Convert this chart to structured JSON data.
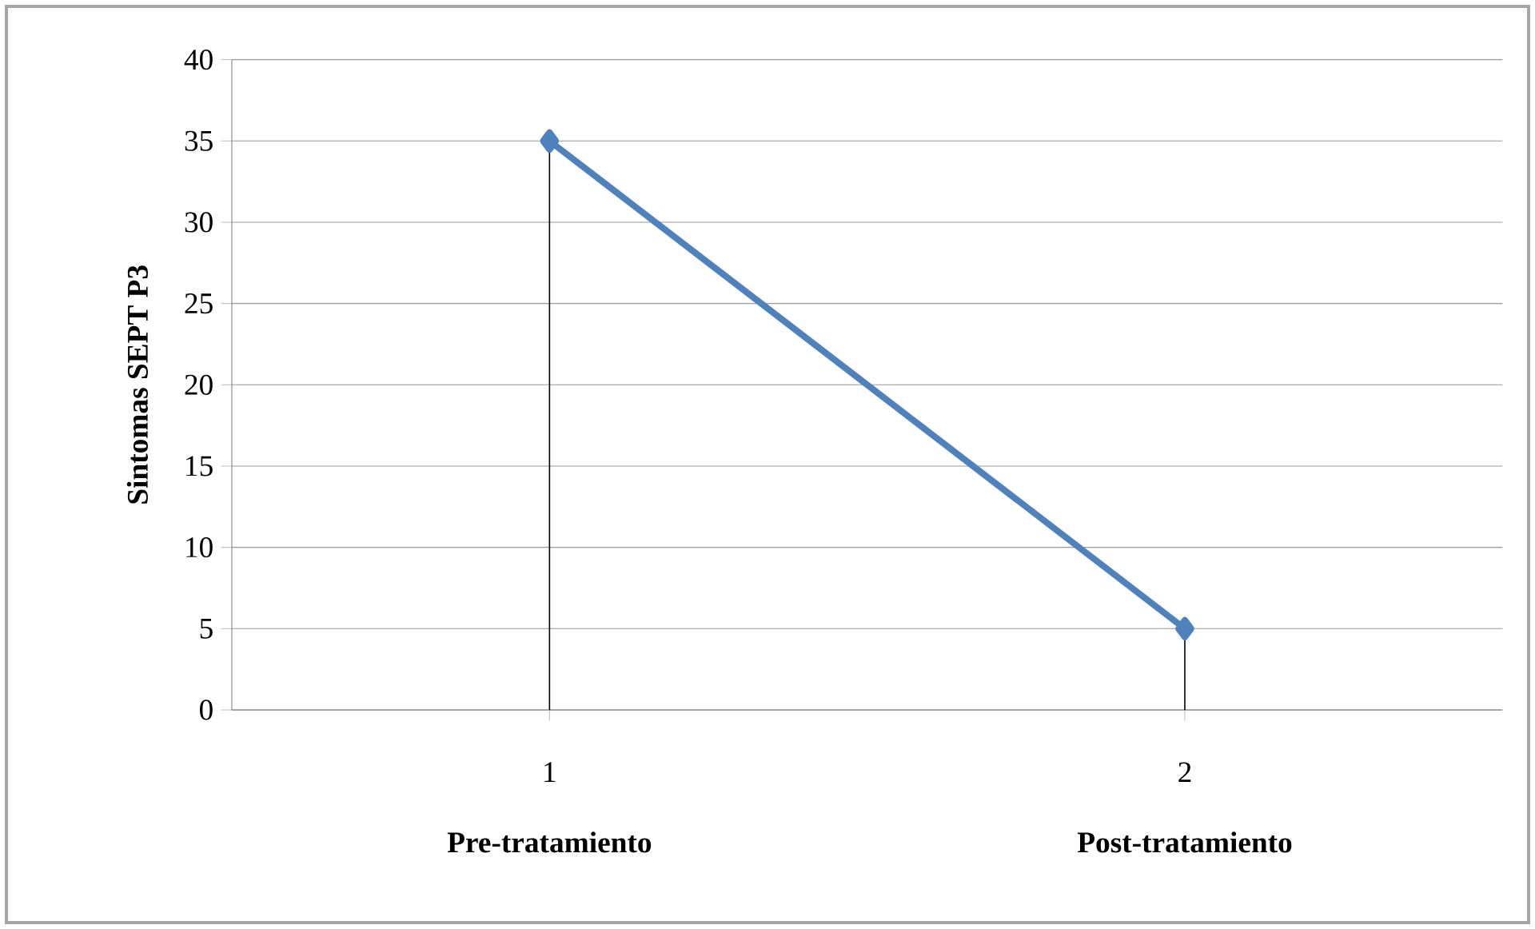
{
  "chart_data": {
    "type": "line",
    "ylabel": "Sintomas SEPT P3",
    "categories": [
      "1",
      "2"
    ],
    "annotations": [
      "Pre-tratamiento",
      "Post-tratamiento"
    ],
    "series": [
      {
        "color": "#4f81bd",
        "values": [
          35,
          5
        ],
        "errors": [
          [
            0,
            35
          ],
          [
            0,
            5
          ]
        ]
      }
    ],
    "ylim": [
      0,
      40
    ],
    "yticks": [
      0,
      5,
      10,
      15,
      20,
      25,
      30,
      35,
      40
    ],
    "grid": "y",
    "marker": "diamond",
    "line_style": "solid"
  }
}
